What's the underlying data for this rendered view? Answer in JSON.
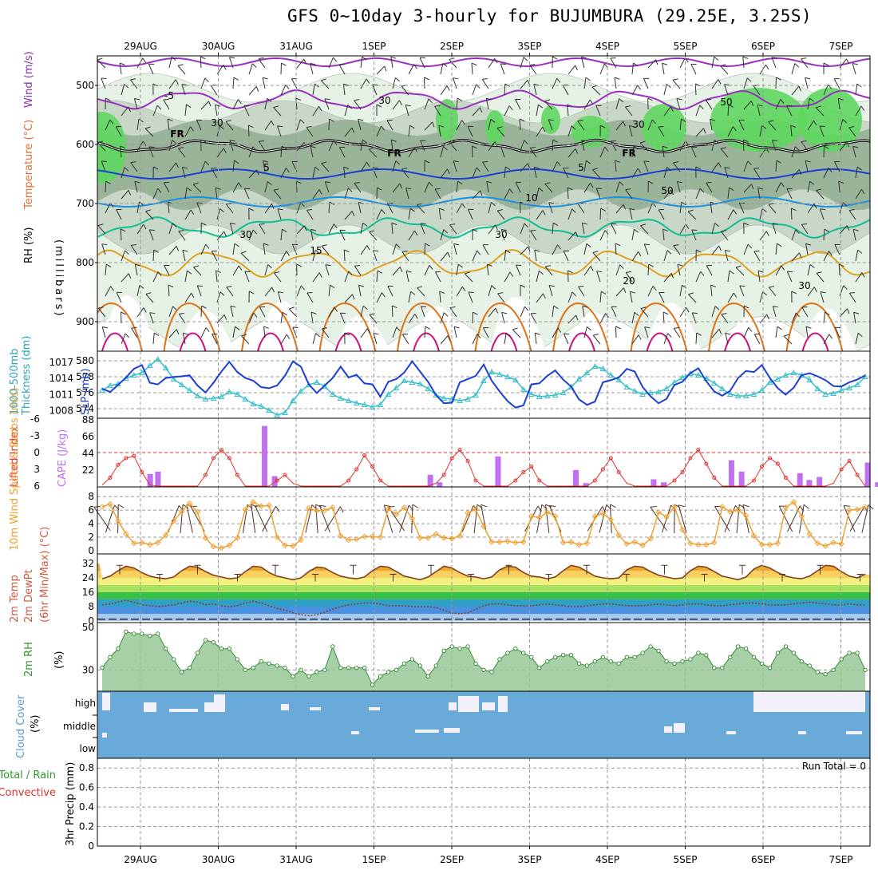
{
  "title": "GFS 0~10day 3-hourly for BUJUMBURA (29.25E, 3.25S)",
  "colors": {
    "grid": "#9a9a9a",
    "rh_light": "#e6f2e6",
    "rh_mid": "#c8d7c8",
    "rh_dark": "#9ab49a",
    "rh_green": "#5ed75e",
    "thickness": "#33c0c8",
    "slp": "#1b3fd4",
    "lifted": "#e0302a",
    "cape": "#c070f0",
    "wind10": "#f0a030",
    "barb": "#303030",
    "temp_fill": "#f08a10",
    "temp_line": "#804020",
    "rh2m_fill": "#98c898",
    "rh2m_line": "#3a8a3a",
    "cloud": "#6aaad8",
    "cloud_gap": "#f2f0f8"
  },
  "chart_data": {
    "type": "meteogram",
    "dates": [
      "29AUG",
      "30AUG",
      "31AUG",
      "1SEP",
      "2SEP",
      "3SEP",
      "4SEP",
      "5SEP",
      "6SEP",
      "7SEP"
    ],
    "panels": [
      {
        "id": "upper-air",
        "labels": [
          "Wind (m/s)",
          "Temperature (°C)",
          "RH (%)"
        ],
        "ylabel": "(millibars)",
        "yticks": [
          500,
          600,
          700,
          800,
          900
        ],
        "ylim": [
          950,
          450
        ],
        "isotherm_labels": [
          "-5",
          "FR",
          "5",
          "10",
          "15",
          "20",
          "30",
          "50"
        ]
      },
      {
        "id": "thickness-slp",
        "labels": [
          "1000-500mb",
          "Thickness (dm)",
          "SLP (mb)"
        ],
        "left_ticks": [
          580,
          578,
          576,
          574
        ],
        "right_ticks": [
          1017,
          1014,
          1011,
          1008
        ],
        "thickness_dm": [
          576.3,
          576.9,
          577.1,
          577.8,
          578.2,
          578.5,
          579.4,
          580.2,
          579.1,
          577.7,
          577.0,
          576.3,
          575.6,
          575.2,
          575.3,
          575.5,
          576.1,
          575.8,
          575.2,
          574.6,
          574.3,
          573.8,
          573.2,
          573.5,
          575.0,
          576.2,
          577.0,
          577.3,
          576.8,
          575.8,
          575.3,
          575.0,
          574.7,
          574.5,
          574.2,
          574.5,
          575.8,
          576.6,
          577.5,
          577.3,
          577.1,
          576.5,
          575.7,
          575.3,
          575.2,
          575.0,
          575.2,
          575.7,
          577.5,
          578.6,
          578.3,
          578.0,
          577.6,
          576.4,
          575.8,
          575.5,
          575.6,
          575.7,
          576.0,
          576.7,
          577.7,
          578.5,
          579.3,
          579.0,
          578.2,
          577.6,
          576.7,
          576.2,
          575.8,
          576.0,
          576.1,
          576.5,
          577.3,
          577.9,
          578.4,
          578.2,
          577.8,
          577.2,
          576.5,
          575.8,
          575.6,
          575.6,
          575.8,
          576.3,
          577.3,
          577.7,
          578.2,
          578.5,
          578.2,
          577.6,
          576.5,
          575.8,
          575.9,
          576.3,
          576.6,
          577.0,
          578.0
        ],
        "slp_mb": [
          1012.1,
          1011.5,
          1012.8,
          1014.2,
          1015.8,
          1016.5,
          1013.2,
          1012.9,
          1014.1,
          1014.3,
          1014.4,
          1014.6,
          1012.7,
          1011.4,
          1013.2,
          1015.3,
          1017.1,
          1015.2,
          1014.1,
          1013.6,
          1012.4,
          1012.2,
          1012.7,
          1014.5,
          1017.2,
          1016.2,
          1012.9,
          1011.3,
          1012.7,
          1014.1,
          1016.2,
          1014.2,
          1014.7,
          1013.1,
          1012.9,
          1010.6,
          1013.4,
          1013.9,
          1015.1,
          1017.2,
          1015.3,
          1013.4,
          1010.9,
          1009.4,
          1009.5,
          1013.3,
          1013.9,
          1014.5,
          1016.6,
          1013.6,
          1011.6,
          1009.8,
          1008.6,
          1009.0,
          1012.9,
          1013.1,
          1014.5,
          1015.5,
          1013.8,
          1012.5,
          1010.1,
          1009.1,
          1009.7,
          1013.3,
          1013.7,
          1014.2,
          1015.8,
          1015.3,
          1012.4,
          1010.7,
          1009.4,
          1010.2,
          1012.8,
          1013.4,
          1015.0,
          1015.9,
          1013.5,
          1011.6,
          1010.8,
          1011.7,
          1014.1,
          1015.4,
          1015.2,
          1016.5,
          1014.1,
          1012.2,
          1011.0,
          1012.3,
          1014.6,
          1015.0,
          1014.4,
          1013.7,
          1012.6,
          1012.5,
          1013.3,
          1013.8,
          1014.6
        ]
      },
      {
        "id": "lifted-cape",
        "labels": [
          "Lifted Index",
          "CAPE (J/kg)"
        ],
        "left_ticks": [
          "-6",
          "-3",
          "0",
          "3",
          "6"
        ],
        "right_ticks": [
          88,
          66,
          44,
          22
        ],
        "cape_bars": [
          {
            "day": 0.15,
            "v": 17
          },
          {
            "day": 0.25,
            "v": 20
          },
          {
            "day": 1.0,
            "v": 0
          },
          {
            "day": 1.62,
            "v": 80
          },
          {
            "day": 1.75,
            "v": 14
          },
          {
            "day": 3.75,
            "v": 16
          },
          {
            "day": 3.87,
            "v": 6
          },
          {
            "day": 4.62,
            "v": 40
          },
          {
            "day": 5.62,
            "v": 22
          },
          {
            "day": 5.75,
            "v": 5
          },
          {
            "day": 6.62,
            "v": 10
          },
          {
            "day": 6.75,
            "v": 6
          },
          {
            "day": 7.62,
            "v": 35
          },
          {
            "day": 7.75,
            "v": 20
          },
          {
            "day": 8.5,
            "v": 18
          },
          {
            "day": 8.62,
            "v": 9
          },
          {
            "day": 8.75,
            "v": 13
          },
          {
            "day": 9.37,
            "v": 32
          },
          {
            "day": 9.5,
            "v": 6
          },
          {
            "day": 9.62,
            "v": 78
          },
          {
            "day": 9.75,
            "v": 5
          }
        ],
        "lifted_index": [
          5.8,
          4.5,
          2.2,
          1.0,
          0.6,
          3.5,
          5.8,
          6.0,
          6.0,
          6.0,
          6.0,
          6.0,
          6.0,
          4.0,
          1.0,
          -0.5,
          1.0,
          4.0,
          6.0,
          6.0,
          6.0,
          6.0,
          5.0,
          4.0,
          5.5,
          6.0,
          6.0,
          6.0,
          6.0,
          6.0,
          6.0,
          5.0,
          3.0,
          0.5,
          2.5,
          5.0,
          6.0,
          6.0,
          6.0,
          6.0,
          6.0,
          6.0,
          5.5,
          4.0,
          1.0,
          -0.5,
          1.5,
          5.0,
          6.0,
          6.0,
          6.0,
          6.0,
          5.0,
          3.5,
          2.5,
          5.0,
          6.0,
          6.0,
          6.0,
          6.0,
          6.0,
          6.0,
          5.0,
          3.0,
          1.0,
          3.5,
          5.5,
          6.0,
          6.0,
          6.0,
          6.0,
          6.0,
          5.0,
          3.5,
          1.0,
          -0.5,
          2.0,
          4.5,
          6.0,
          6.0,
          6.0,
          6.0,
          5.0,
          2.5,
          1.0,
          2.0,
          4.5,
          6.0,
          6.0,
          6.0,
          6.0,
          6.0,
          5.5,
          3.0,
          1.5,
          4.0,
          6.0
        ]
      },
      {
        "id": "wind10m",
        "labels": [
          "10m Wind Speed & Barbs (m/s)"
        ],
        "left_ticks": [
          8,
          6,
          4,
          2,
          0
        ],
        "speed_ms": [
          6.5,
          6.9,
          4.4,
          2.5,
          1.1,
          1.2,
          0.9,
          1.2,
          2.3,
          4.4,
          5.8,
          7.0,
          5.7,
          1.9,
          0.6,
          0.4,
          0.8,
          1.9,
          6.1,
          7.2,
          6.6,
          6.7,
          2.0,
          0.8,
          0.7,
          1.6,
          6.3,
          5.9,
          6.0,
          6.4,
          2.2,
          1.6,
          1.7,
          2.1,
          2.1,
          2.0,
          6.2,
          5.4,
          6.4,
          4.8,
          1.9,
          1.9,
          2.5,
          1.9,
          1.8,
          2.2,
          5.6,
          6.1,
          3.6,
          1.3,
          1.3,
          1.4,
          1.2,
          1.3,
          5.1,
          4.9,
          5.7,
          5.1,
          1.2,
          1.3,
          0.9,
          1.1,
          5.1,
          5.5,
          4.6,
          2.3,
          1.0,
          1.3,
          0.8,
          1.8,
          5.7,
          5.0,
          6.5,
          3.1,
          1.1,
          0.9,
          0.9,
          1.2,
          6.5,
          5.8,
          6.0,
          5.2,
          2.2,
          0.9,
          0.9,
          1.1,
          6.4,
          7.2,
          5.1,
          2.5,
          1.1,
          0.7,
          1.2,
          1.0,
          6.0,
          6.1,
          6.5
        ]
      },
      {
        "id": "temp2m",
        "labels": [
          "2m Temp",
          "2m DewPt",
          "(6hr Min/Max) (°C)"
        ],
        "left_ticks": [
          32,
          24,
          16,
          8,
          0
        ],
        "temp_c": [
          23.5,
          25.0,
          28.0,
          30.5,
          29.5,
          27.0,
          25.0,
          24.0,
          23.5,
          24.5,
          28.0,
          30.5,
          30.0,
          27.5,
          25.5,
          24.5,
          23.5,
          24.0,
          27.5,
          30.5,
          30.0,
          27.0,
          25.0,
          24.0,
          23.0,
          24.0,
          27.5,
          30.0,
          29.5,
          27.0,
          25.0,
          24.0,
          23.5,
          24.5,
          28.0,
          30.5,
          30.0,
          27.5,
          25.0,
          24.0,
          23.0,
          24.5,
          27.5,
          30.5,
          29.5,
          27.0,
          25.0,
          24.5,
          23.5,
          24.5,
          28.5,
          30.5,
          30.0,
          27.0,
          25.0,
          24.5,
          23.5,
          24.5,
          28.0,
          31.0,
          30.0,
          27.5,
          25.0,
          24.0,
          23.5,
          24.0,
          28.5,
          30.5,
          30.0,
          27.5,
          25.5,
          24.5,
          23.5,
          24.0,
          28.0,
          30.5,
          30.0,
          27.5,
          25.0,
          24.0,
          23.0,
          24.5,
          29.0,
          31.0,
          29.5,
          27.0,
          25.0,
          24.0,
          23.5,
          25.0,
          28.0,
          31.0,
          30.5,
          27.5,
          25.0,
          24.0,
          26.0
        ],
        "dewpt_c": [
          9.0,
          9.5,
          10.5,
          11.5,
          10.5,
          9.0,
          8.5,
          8.0,
          8.5,
          9.0,
          10.0,
          11.0,
          10.5,
          9.0,
          9.5,
          8.5,
          8.0,
          8.5,
          10.0,
          11.0,
          10.0,
          8.5,
          7.0,
          6.0,
          4.5,
          3.5,
          3.0,
          3.5,
          5.0,
          6.5,
          8.0,
          9.0,
          9.5,
          10.0,
          10.0,
          9.5,
          8.5,
          8.5,
          8.5,
          8.0,
          8.0,
          8.0,
          7.5,
          6.0,
          4.5,
          4.0,
          4.5,
          6.5,
          8.5,
          9.5,
          9.5,
          9.0,
          8.5,
          8.5,
          8.5,
          9.0,
          9.5,
          9.0,
          8.5,
          8.0,
          8.0,
          8.5,
          9.0,
          9.5,
          9.5,
          9.0,
          8.5,
          8.5,
          8.5,
          9.0,
          9.5,
          9.0,
          8.5,
          9.0,
          9.5,
          9.5,
          9.0,
          8.5,
          8.5,
          9.0,
          9.5,
          10.0,
          10.0,
          9.5,
          9.0,
          9.0,
          9.0,
          9.5,
          10.0,
          10.5,
          10.0,
          9.5,
          9.0,
          9.0,
          9.5,
          9.0,
          9.0
        ]
      },
      {
        "id": "rh2m",
        "labels": [
          "2m RH",
          "(%)"
        ],
        "left_ticks": [
          50,
          30
        ],
        "rh_pct": [
          31,
          36,
          40,
          48,
          47,
          47,
          46,
          47,
          40,
          35,
          29,
          31,
          38,
          44,
          43,
          40,
          40,
          35,
          30,
          31,
          34,
          33,
          32,
          31,
          27,
          30,
          27,
          29,
          30,
          41,
          31,
          31,
          31,
          31,
          23,
          27,
          29,
          30,
          33,
          35,
          32,
          27,
          32,
          39,
          41,
          40,
          41,
          33,
          30,
          29,
          35,
          38,
          40,
          38,
          36,
          31,
          34,
          36,
          37,
          37,
          33,
          32,
          34,
          36,
          34,
          33,
          36,
          36,
          38,
          41,
          39,
          34,
          33,
          34,
          35,
          38,
          37,
          31,
          31,
          36,
          41,
          40,
          36,
          33,
          31,
          38,
          41,
          38,
          34,
          32,
          29,
          28,
          30,
          35,
          38,
          38,
          30
        ]
      },
      {
        "id": "cloud",
        "labels": [
          "Cloud Cover",
          "(%)"
        ],
        "levels": [
          "high",
          "middle",
          "low"
        ]
      },
      {
        "id": "precip",
        "labels": [
          "Total / Rain",
          "Convective",
          "3hr Precip (mm)"
        ],
        "left_ticks": [
          "0.8",
          "0.6",
          "0.4",
          "0.2",
          "0"
        ],
        "ylim": [
          0,
          0.9
        ],
        "run_total": "Run Total = 0",
        "values": []
      }
    ]
  }
}
